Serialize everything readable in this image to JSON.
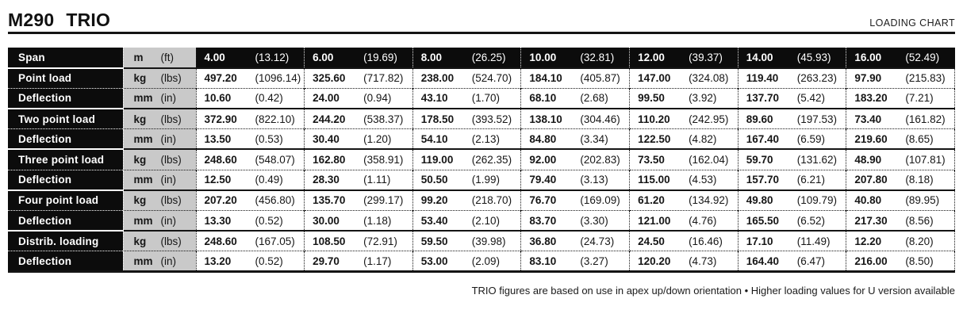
{
  "header": {
    "title_parts": [
      "M290",
      "TRIO"
    ],
    "subtitle": "LOADING CHART"
  },
  "colors": {
    "row_black": "#0c0c0c",
    "unit_gray": "#c9c9c9",
    "rule_black": "#141414"
  },
  "table": {
    "rows": [
      {
        "type": "span",
        "label": "Span",
        "unit": "m",
        "unit_imperial": "(ft)",
        "values": [
          [
            "4.00",
            "(13.12)"
          ],
          [
            "6.00",
            "(19.69)"
          ],
          [
            "8.00",
            "(26.25)"
          ],
          [
            "10.00",
            "(32.81)"
          ],
          [
            "12.00",
            "(39.37)"
          ],
          [
            "14.00",
            "(45.93)"
          ],
          [
            "16.00",
            "(52.49)"
          ]
        ]
      },
      {
        "type": "load",
        "label": "Point load",
        "unit": "kg",
        "unit_imperial": "(lbs)",
        "values": [
          [
            "497.20",
            "(1096.14)"
          ],
          [
            "325.60",
            "(717.82)"
          ],
          [
            "238.00",
            "(524.70)"
          ],
          [
            "184.10",
            "(405.87)"
          ],
          [
            "147.00",
            "(324.08)"
          ],
          [
            "119.40",
            "(263.23)"
          ],
          [
            "97.90",
            "(215.83)"
          ]
        ]
      },
      {
        "type": "deflection",
        "label": "Deflection",
        "unit": "mm",
        "unit_imperial": "(in)",
        "values": [
          [
            "10.60",
            "(0.42)"
          ],
          [
            "24.00",
            "(0.94)"
          ],
          [
            "43.10",
            "(1.70)"
          ],
          [
            "68.10",
            "(2.68)"
          ],
          [
            "99.50",
            "(3.92)"
          ],
          [
            "137.70",
            "(5.42)"
          ],
          [
            "183.20",
            "(7.21)"
          ]
        ]
      },
      {
        "type": "load",
        "label": "Two point load",
        "unit": "kg",
        "unit_imperial": "(lbs)",
        "values": [
          [
            "372.90",
            "(822.10)"
          ],
          [
            "244.20",
            "(538.37)"
          ],
          [
            "178.50",
            "(393.52)"
          ],
          [
            "138.10",
            "(304.46)"
          ],
          [
            "110.20",
            "(242.95)"
          ],
          [
            "89.60",
            "(197.53)"
          ],
          [
            "73.40",
            "(161.82)"
          ]
        ]
      },
      {
        "type": "deflection",
        "label": "Deflection",
        "unit": "mm",
        "unit_imperial": "(in)",
        "values": [
          [
            "13.50",
            "(0.53)"
          ],
          [
            "30.40",
            "(1.20)"
          ],
          [
            "54.10",
            "(2.13)"
          ],
          [
            "84.80",
            "(3.34)"
          ],
          [
            "122.50",
            "(4.82)"
          ],
          [
            "167.40",
            "(6.59)"
          ],
          [
            "219.60",
            "(8.65)"
          ]
        ]
      },
      {
        "type": "load",
        "label": "Three point load",
        "unit": "kg",
        "unit_imperial": "(lbs)",
        "values": [
          [
            "248.60",
            "(548.07)"
          ],
          [
            "162.80",
            "(358.91)"
          ],
          [
            "119.00",
            "(262.35)"
          ],
          [
            "92.00",
            "(202.83)"
          ],
          [
            "73.50",
            "(162.04)"
          ],
          [
            "59.70",
            "(131.62)"
          ],
          [
            "48.90",
            "(107.81)"
          ]
        ]
      },
      {
        "type": "deflection",
        "label": "Deflection",
        "unit": "mm",
        "unit_imperial": "(in)",
        "values": [
          [
            "12.50",
            "(0.49)"
          ],
          [
            "28.30",
            "(1.11)"
          ],
          [
            "50.50",
            "(1.99)"
          ],
          [
            "79.40",
            "(3.13)"
          ],
          [
            "115.00",
            "(4.53)"
          ],
          [
            "157.70",
            "(6.21)"
          ],
          [
            "207.80",
            "(8.18)"
          ]
        ]
      },
      {
        "type": "load",
        "label": "Four point load",
        "unit": "kg",
        "unit_imperial": "(lbs)",
        "values": [
          [
            "207.20",
            "(456.80)"
          ],
          [
            "135.70",
            "(299.17)"
          ],
          [
            "99.20",
            "(218.70)"
          ],
          [
            "76.70",
            "(169.09)"
          ],
          [
            "61.20",
            "(134.92)"
          ],
          [
            "49.80",
            "(109.79)"
          ],
          [
            "40.80",
            "(89.95)"
          ]
        ]
      },
      {
        "type": "deflection",
        "label": "Deflection",
        "unit": "mm",
        "unit_imperial": "(in)",
        "values": [
          [
            "13.30",
            "(0.52)"
          ],
          [
            "30.00",
            "(1.18)"
          ],
          [
            "53.40",
            "(2.10)"
          ],
          [
            "83.70",
            "(3.30)"
          ],
          [
            "121.00",
            "(4.76)"
          ],
          [
            "165.50",
            "(6.52)"
          ],
          [
            "217.30",
            "(8.56)"
          ]
        ]
      },
      {
        "type": "load",
        "label": "Distrib. loading",
        "unit": "kg",
        "unit_imperial": "(lbs)",
        "values": [
          [
            "248.60",
            "(167.05)"
          ],
          [
            "108.50",
            "(72.91)"
          ],
          [
            "59.50",
            "(39.98)"
          ],
          [
            "36.80",
            "(24.73)"
          ],
          [
            "24.50",
            "(16.46)"
          ],
          [
            "17.10",
            "(11.49)"
          ],
          [
            "12.20",
            "(8.20)"
          ]
        ]
      },
      {
        "type": "deflection",
        "label": "Deflection",
        "unit": "mm",
        "unit_imperial": "(in)",
        "values": [
          [
            "13.20",
            "(0.52)"
          ],
          [
            "29.70",
            "(1.17)"
          ],
          [
            "53.00",
            "(2.09)"
          ],
          [
            "83.10",
            "(3.27)"
          ],
          [
            "120.20",
            "(4.73)"
          ],
          [
            "164.40",
            "(6.47)"
          ],
          [
            "216.00",
            "(8.50)"
          ]
        ]
      }
    ]
  },
  "footer": {
    "note": "TRIO figures are based on use in apex up/down orientation • Higher loading values for U version available"
  }
}
